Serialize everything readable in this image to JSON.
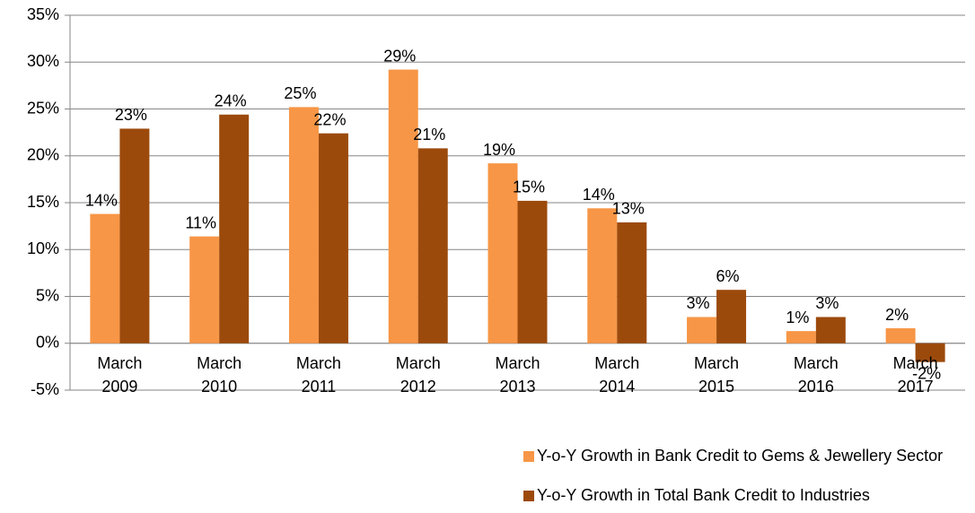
{
  "chart_data": {
    "type": "bar",
    "categories": [
      "March 2009",
      "March 2010",
      "March 2011",
      "March 2012",
      "March 2013",
      "March 2014",
      "March 2015",
      "March 2016",
      "March 2017"
    ],
    "series": [
      {
        "name": "Y-o-Y Growth in Bank Credit to Gems & Jewellery Sector",
        "color": "#f79646",
        "values": [
          13.8,
          11.4,
          25.2,
          29.2,
          19.2,
          14.4,
          2.8,
          1.3,
          1.6
        ],
        "value_labels": [
          "14%",
          "11%",
          "25%",
          "29%",
          "19%",
          "14%",
          "3%",
          "1%",
          "2%"
        ]
      },
      {
        "name": "Y-o-Y Growth in Total Bank Credit to Industries",
        "color": "#9c4a0c",
        "values": [
          22.9,
          24.4,
          22.4,
          20.8,
          15.2,
          12.9,
          5.7,
          2.8,
          -2.0
        ],
        "value_labels": [
          "23%",
          "24%",
          "22%",
          "21%",
          "15%",
          "13%",
          "6%",
          "3%",
          "-2%"
        ]
      }
    ],
    "ylim": [
      -5,
      35
    ],
    "yticks": [
      {
        "value": -5,
        "label": "-5%"
      },
      {
        "value": 0,
        "label": "0%"
      },
      {
        "value": 5,
        "label": "5%"
      },
      {
        "value": 10,
        "label": "10%"
      },
      {
        "value": 15,
        "label": "15%"
      },
      {
        "value": 20,
        "label": "20%"
      },
      {
        "value": 25,
        "label": "25%"
      },
      {
        "value": 30,
        "label": "30%"
      },
      {
        "value": 35,
        "label": "35%"
      }
    ],
    "grid": true,
    "legend": "bottom"
  }
}
